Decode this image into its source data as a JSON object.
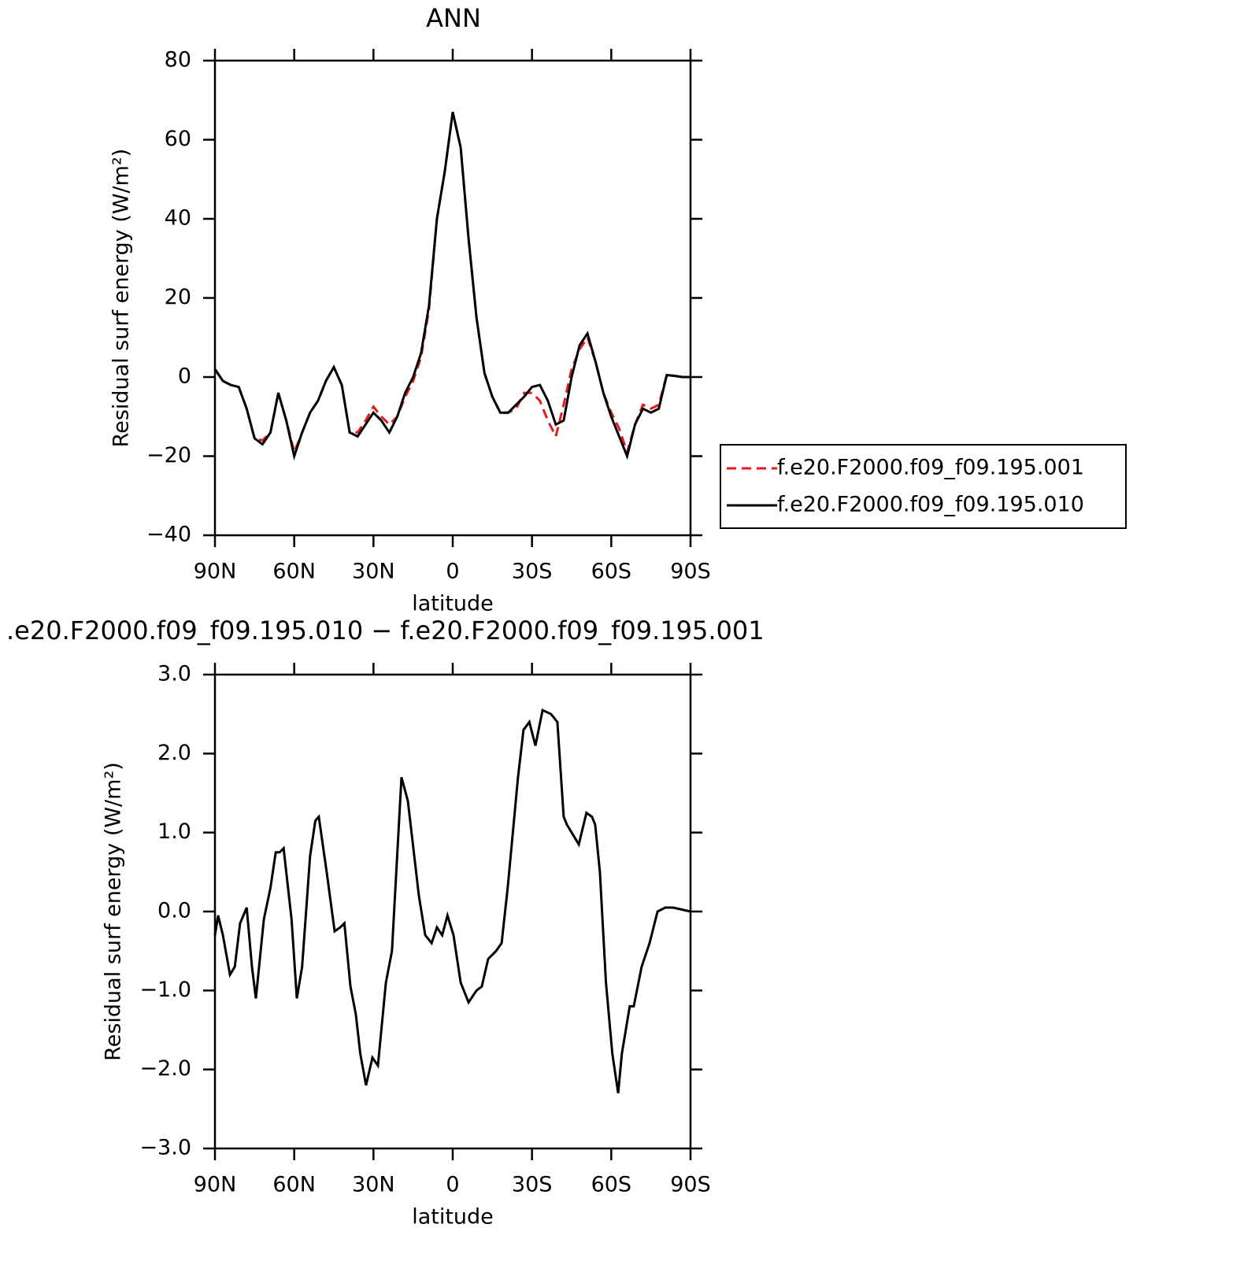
{
  "chart_data": [
    {
      "type": "line",
      "title": "ANN",
      "xlabel": "latitude",
      "ylabel": "Residual surf energy (W/m²)",
      "x": [
        90,
        87,
        84,
        81,
        78,
        75,
        72,
        69,
        66,
        63,
        60,
        57,
        54,
        51,
        48,
        45,
        42,
        39,
        36,
        33,
        30,
        27,
        24,
        21,
        18,
        15,
        12,
        9,
        6,
        3,
        0,
        -3,
        -6,
        -9,
        -12,
        -15,
        -18,
        -21,
        -24,
        -27,
        -30,
        -33,
        -36,
        -39,
        -42,
        -45,
        -48,
        -51,
        -54,
        -57,
        -60,
        -63,
        -66,
        -69,
        -72,
        -75,
        -78,
        -81,
        -84,
        -87,
        -90
      ],
      "series": [
        {
          "name": "f.e20.F2000.f09_f09.195.001",
          "color": "#e41a1c",
          "dash": true,
          "values": [
            2,
            -1,
            -2,
            -2.5,
            -8,
            -15.5,
            -16,
            -14,
            -4,
            -11,
            -19,
            -14,
            -9,
            -6,
            -1,
            2.5,
            -2,
            -14,
            -14,
            -11,
            -7.5,
            -10,
            -12,
            -10,
            -5,
            -1,
            5,
            17,
            40,
            52,
            67,
            58,
            35,
            15,
            1,
            -5,
            -9,
            -9,
            -8,
            -4,
            -4,
            -6,
            -11,
            -15,
            -7,
            2,
            7,
            10,
            4,
            -4,
            -9,
            -13,
            -19,
            -12,
            -7,
            -8,
            -7,
            0.5,
            0.3,
            0,
            0
          ]
        },
        {
          "name": "f.e20.F2000.f09_f09.195.010",
          "color": "#000000",
          "dash": false,
          "values": [
            2,
            -1,
            -2,
            -2.5,
            -8,
            -15.5,
            -17,
            -14,
            -4,
            -11,
            -20,
            -14,
            -9,
            -6,
            -1,
            2.5,
            -2,
            -14,
            -15,
            -12,
            -9,
            -11,
            -14,
            -10,
            -4,
            0,
            6,
            18,
            40,
            52,
            67,
            58,
            35,
            15,
            1,
            -5,
            -9,
            -9,
            -7,
            -5,
            -2.5,
            -2,
            -6,
            -12,
            -11,
            0,
            8,
            11,
            4,
            -4,
            -10,
            -15,
            -20,
            -12,
            -8,
            -9,
            -8,
            0.5,
            0.3,
            0,
            0
          ]
        }
      ],
      "xlim": [
        90,
        -90
      ],
      "xticks": [
        {
          "value": 90,
          "label": "90N"
        },
        {
          "value": 60,
          "label": "60N"
        },
        {
          "value": 30,
          "label": "30N"
        },
        0,
        {
          "value": -30,
          "label": "30S"
        },
        {
          "value": -60,
          "label": "60S"
        },
        {
          "value": -90,
          "label": "90S"
        }
      ],
      "ylim": [
        -40,
        80
      ],
      "yticks": [
        {
          "value": -40,
          "label": "−40"
        },
        {
          "value": -20,
          "label": "−20"
        },
        0,
        20,
        40,
        60,
        80
      ],
      "legend": "right"
    },
    {
      "type": "line",
      "title": ".e20.F2000.f09_f09.195.010 − f.e20.F2000.f09_f09.195.001",
      "xlabel": "latitude",
      "ylabel": "Residual surf energy (W/m²)",
      "x": [
        90,
        88.8,
        87,
        84.3,
        82.5,
        80.5,
        78,
        76,
        74.5,
        71.5,
        69,
        67,
        65.5,
        64,
        61,
        59,
        57,
        54,
        52,
        50.7,
        47.7,
        44.7,
        42.6,
        41,
        38.7,
        36.7,
        35,
        32.8,
        30.4,
        28.3,
        25.3,
        23,
        19.4,
        17,
        12.8,
        10.4,
        8,
        6,
        4,
        2,
        -0.3,
        -3,
        -6,
        -9,
        -11,
        -13.4,
        -16.4,
        -18.5,
        -20.8,
        -24.7,
        -26.8,
        -29,
        -31.3,
        -34,
        -37.2,
        -39.6,
        -42,
        -43.2,
        -47.7,
        -50.6,
        -52.7,
        -53.9,
        -55.7,
        -58,
        -60.4,
        -62.6,
        -64,
        -67,
        -68.5,
        -71.5,
        -74.5,
        -77.5,
        -80.4,
        -83.4,
        -90
      ],
      "values": [
        -0.3,
        -0.05,
        -0.3,
        -0.8,
        -0.7,
        -0.15,
        0.05,
        -0.7,
        -1.1,
        -0.1,
        0.3,
        0.75,
        0.75,
        0.8,
        -0.1,
        -1.1,
        -0.7,
        0.7,
        1.15,
        1.2,
        0.5,
        -0.25,
        -0.2,
        -0.15,
        -0.95,
        -1.3,
        -1.8,
        -2.2,
        -1.85,
        -1.95,
        -0.9,
        -0.5,
        1.7,
        1.4,
        0.2,
        -0.3,
        -0.4,
        -0.2,
        -0.3,
        -0.05,
        -0.3,
        -0.9,
        -1.15,
        -1,
        -0.95,
        -0.6,
        -0.5,
        -0.4,
        0.3,
        1.7,
        2.3,
        2.4,
        2.1,
        2.55,
        2.5,
        2.4,
        1.2,
        1.1,
        0.85,
        1.25,
        1.2,
        1.1,
        0.5,
        -0.9,
        -1.8,
        -2.3,
        -1.8,
        -1.2,
        -1.2,
        -0.7,
        -0.4,
        0,
        0.05,
        0.05,
        0
      ],
      "color": "#000000",
      "xlim": [
        90,
        -90
      ],
      "xticks": [
        {
          "value": 90,
          "label": "90N"
        },
        {
          "value": 60,
          "label": "60N"
        },
        {
          "value": 30,
          "label": "30N"
        },
        0,
        {
          "value": -30,
          "label": "30S"
        },
        {
          "value": -60,
          "label": "60S"
        },
        {
          "value": -90,
          "label": "90S"
        }
      ],
      "ylim": [
        -3,
        3
      ],
      "yticks": [
        {
          "value": -3,
          "label": "−3.0"
        },
        {
          "value": -2,
          "label": "−2.0"
        },
        {
          "value": -1,
          "label": "−1.0"
        },
        {
          "value": 0,
          "label": "0.0"
        },
        {
          "value": 1,
          "label": "1.0"
        },
        {
          "value": 2,
          "label": "2.0"
        },
        {
          "value": 3,
          "label": "3.0"
        }
      ]
    }
  ]
}
